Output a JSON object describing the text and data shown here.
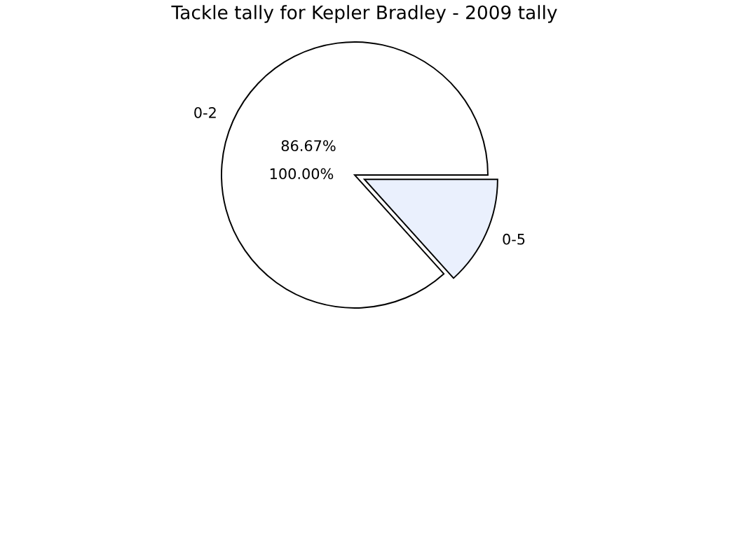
{
  "chart_data": {
    "type": "pie",
    "title": "Tackle tally for Kepler Bradley - 2009 tally",
    "categories": [
      "0-2",
      "0-5"
    ],
    "values": [
      86.67,
      13.33
    ],
    "colors": [
      "#ffffff",
      "#eaf0fd"
    ],
    "annotations": [
      "86.67%",
      "100.00%"
    ]
  }
}
